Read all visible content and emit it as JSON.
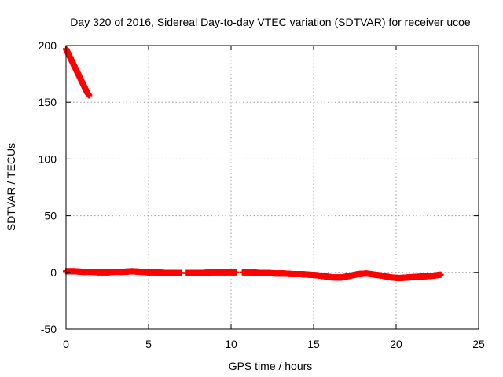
{
  "chart_data": {
    "type": "scatter",
    "title": "Day 320 of 2016, Sidereal Day-to-day VTEC variation (SDTVAR) for receiver ucoe",
    "xlabel": "GPS time / hours",
    "ylabel": "SDTVAR / TECUs",
    "xlim": [
      0,
      25
    ],
    "ylim": [
      -50,
      200
    ],
    "xticks": [
      0,
      5,
      10,
      15,
      20,
      25
    ],
    "yticks": [
      -50,
      0,
      50,
      100,
      150,
      200
    ],
    "xtick_labels": [
      "0",
      "5",
      "10",
      "15",
      "20",
      "25"
    ],
    "ytick_labels": [
      "-50",
      "0",
      "50",
      "100",
      "150",
      "200"
    ],
    "grid": true,
    "series": [
      {
        "name": "SDTVAR",
        "color": "#ff0000",
        "marker": "plus",
        "segments": [
          {
            "x": [
              0.0,
              0.1,
              0.2,
              0.3,
              0.4,
              0.5,
              0.6,
              0.7,
              0.8,
              0.9,
              1.0,
              1.1,
              1.2,
              1.3,
              1.4
            ],
            "y": [
              197,
              194,
              191,
              188,
              185,
              182,
              179,
              176,
              173,
              170,
              167,
              164,
              161,
              158,
              156
            ]
          },
          {
            "x": [
              0.0,
              0.5,
              1.0,
              1.5,
              2.0,
              2.5,
              3.0,
              3.5,
              4.0,
              4.5,
              5.0,
              5.5,
              6.0,
              6.5,
              7.0
            ],
            "y": [
              1,
              1,
              0.5,
              0.5,
              0,
              0,
              0.5,
              0.5,
              1,
              0.5,
              0,
              0,
              -0.5,
              -0.5,
              -0.5
            ]
          },
          {
            "x": [
              7.3,
              7.8,
              8.3,
              8.8,
              9.3,
              9.8,
              10.3
            ],
            "y": [
              -0.5,
              -0.5,
              -0.5,
              0,
              0,
              0,
              0
            ]
          },
          {
            "x": [
              10.7,
              11.2,
              11.7,
              12.2,
              12.7,
              13.2,
              13.7,
              14.2,
              14.7,
              15.2,
              15.7,
              16.2,
              16.7,
              17.2,
              17.7,
              18.2,
              18.7,
              19.2,
              19.7,
              20.2,
              20.7,
              21.2,
              21.7,
              22.2,
              22.7
            ],
            "y": [
              0,
              0,
              -0.5,
              -0.5,
              -1,
              -1,
              -1.5,
              -1.5,
              -2,
              -2.5,
              -3.5,
              -4.5,
              -4.5,
              -3,
              -1.5,
              -1,
              -2,
              -3,
              -4.5,
              -5,
              -4.5,
              -4,
              -3.5,
              -3,
              -2
            ]
          }
        ]
      }
    ]
  }
}
